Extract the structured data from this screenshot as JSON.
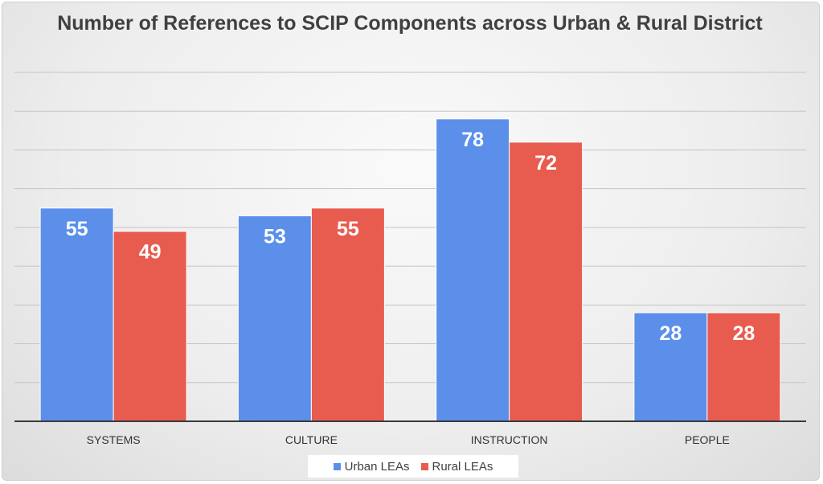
{
  "chart_data": {
    "type": "bar",
    "title": "Number of References to SCIP Components across Urban & Rural District",
    "categories": [
      "SYSTEMS",
      "CULTURE",
      "INSTRUCTION",
      "PEOPLE"
    ],
    "series": [
      {
        "name": "Urban LEAs",
        "values": [
          55,
          53,
          78,
          28
        ],
        "color": "#5B8FEA"
      },
      {
        "name": "Rural LEAs",
        "values": [
          49,
          55,
          72,
          28
        ],
        "color": "#E85C4F"
      }
    ],
    "ylim": [
      0,
      90
    ],
    "grid": true,
    "legend_position": "bottom",
    "data_labels": true
  }
}
